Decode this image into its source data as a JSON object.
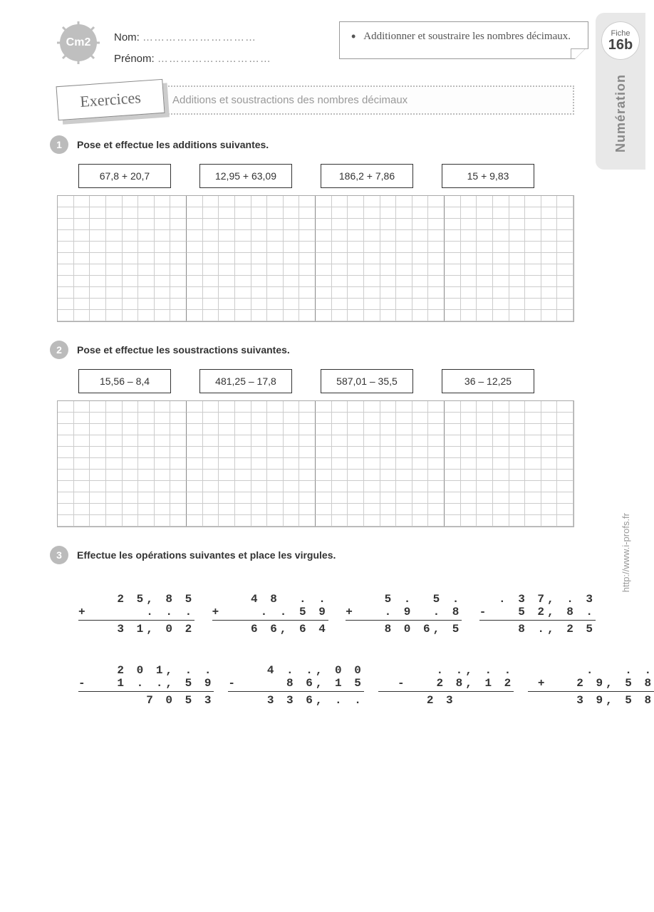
{
  "meta": {
    "grade": "Cm2",
    "fiche_label": "Fiche",
    "fiche_num": "16b",
    "side_label": "Numération",
    "url": "http://www.i-profs.fr"
  },
  "header": {
    "nom_label": "Nom:",
    "prenom_label": "Prénom:",
    "dots": "…………………………",
    "objective": "Additionner et soustraire les nombres décimaux."
  },
  "banner": {
    "tag": "Exercices",
    "title": "Additions et soustractions des nombres décimaux"
  },
  "ex1": {
    "num": "1",
    "text": "Pose et effectue les additions suivantes.",
    "problems": [
      "67,8 + 20,7",
      "12,95 + 63,09",
      "186,2 + 7,86",
      "15 + 9,83"
    ],
    "grid_rows": 11
  },
  "ex2": {
    "num": "2",
    "text": "Pose et effectue les soustractions suivantes.",
    "problems": [
      "15,56 – 8,4",
      "481,25 – 17,8",
      "587,01 – 35,5",
      "36 – 12,25"
    ],
    "grid_rows": 11
  },
  "ex3": {
    "num": "3",
    "text": "Effectue les opérations suivantes et place les virgules.",
    "row1": [
      {
        "l1": "  2 5, 8 5",
        "op": "+",
        "l2": "     . . .",
        "res": "  3 1, 0 2"
      },
      {
        "l1": "  4 8  . .",
        "op": "+",
        "l2": "   . . 5 9",
        "res": "  6 6, 6 4"
      },
      {
        "l1": "  5 .  5 .",
        "op": "+",
        "l2": "  . 9  . 8",
        "res": "  8 0 6, 5"
      },
      {
        "l1": ". 3 7, . 3",
        "op": "-",
        "l2": "  5 2, 8 .",
        "res": "  8 ., 2 5"
      }
    ],
    "row2": [
      {
        "l1": "  2 0 1, . .",
        "op": "-",
        "l2": "  1 . ., 5 9",
        "res": "    7 0 5 3"
      },
      {
        "l1": "  4 . ., 0 0",
        "op": "-",
        "l2": "    8 6, 1 5",
        "res": "  3 3 6, . ."
      },
      {
        "l1": "    . ., . .",
        "op": "-",
        "l2": "  2 8, 1 2",
        "res": "  2 3      "
      },
      {
        "l1": "    .   . .",
        "op": "+",
        "l2": "  2 9, 5 8",
        "res": "  3 9, 5 8"
      }
    ]
  },
  "style": {
    "grid_cols": 32,
    "sep_every": 8
  }
}
